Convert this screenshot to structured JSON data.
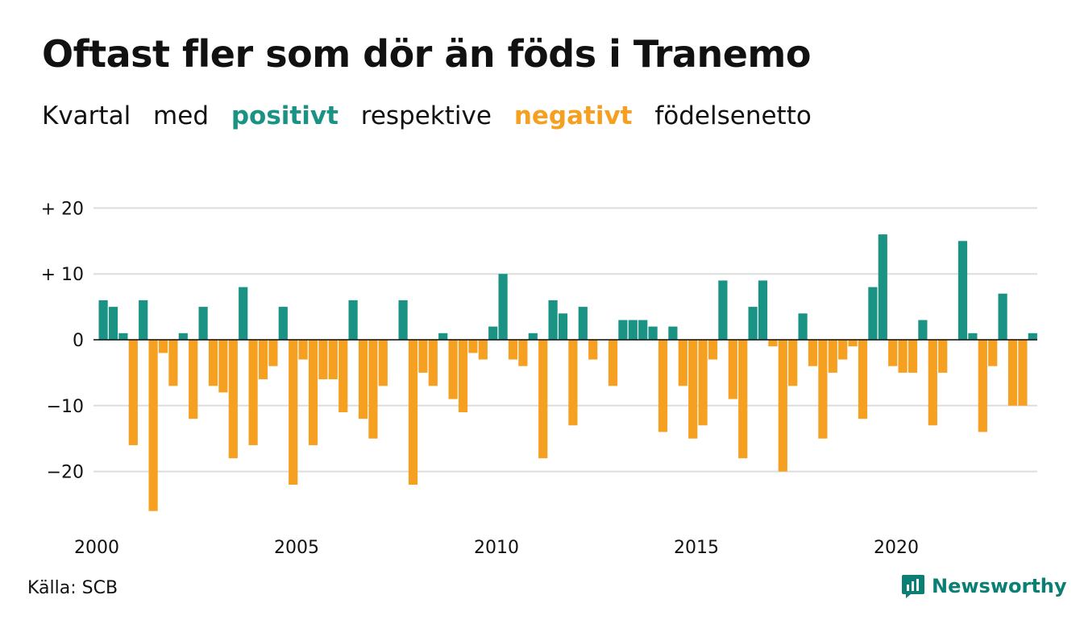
{
  "title": "Oftast fler som dör än föds i Tranemo",
  "subtitle": {
    "part1": "Kvartal",
    "part2": "med",
    "positive": "positivt",
    "part3": "respektive",
    "negative": "negativt",
    "part4": "födelsenetto"
  },
  "colors": {
    "positive": "#1a9385",
    "negative": "#f5a020",
    "grid": "#dddddd",
    "text": "#111111",
    "brand": "#0b7f73"
  },
  "source": "Källa: SCB",
  "brand": {
    "name": "Newsworthy",
    "icon": "newsworthy-logo-icon"
  },
  "chart_data": {
    "type": "bar",
    "x_start": 2000,
    "x_step_per_bar": 0.25,
    "ylim": [
      -27,
      21
    ],
    "yticks": [
      20,
      10,
      0,
      -10,
      -20
    ],
    "ytick_labels": [
      "+ 20",
      "+ 10",
      "0",
      "−10",
      "−20"
    ],
    "xticks": [
      2000,
      2005,
      2010,
      2015,
      2020
    ],
    "xtick_labels": [
      "2000",
      "2005",
      "2010",
      "2015",
      "2020"
    ],
    "grid": true,
    "values": [
      6,
      5,
      1,
      -16,
      6,
      -26,
      -2,
      -7,
      1,
      -12,
      5,
      -7,
      -8,
      -18,
      8,
      -16,
      -6,
      -4,
      5,
      -22,
      -3,
      -16,
      -6,
      -6,
      -11,
      6,
      -12,
      -15,
      -7,
      0,
      6,
      -22,
      -5,
      -7,
      1,
      -9,
      -11,
      -2,
      -3,
      2,
      10,
      -3,
      -4,
      1,
      -18,
      6,
      4,
      -13,
      5,
      -3,
      0,
      -7,
      3,
      3,
      3,
      2,
      -14,
      2,
      -7,
      -15,
      -13,
      -3,
      9,
      -9,
      -18,
      5,
      9,
      -1,
      -20,
      -7,
      4,
      -4,
      -15,
      -5,
      -3,
      -1,
      -12,
      8,
      16,
      -4,
      -5,
      -5,
      3,
      -13,
      -5,
      0,
      15,
      1,
      -14,
      -4,
      7,
      -10,
      -10,
      1
    ]
  }
}
